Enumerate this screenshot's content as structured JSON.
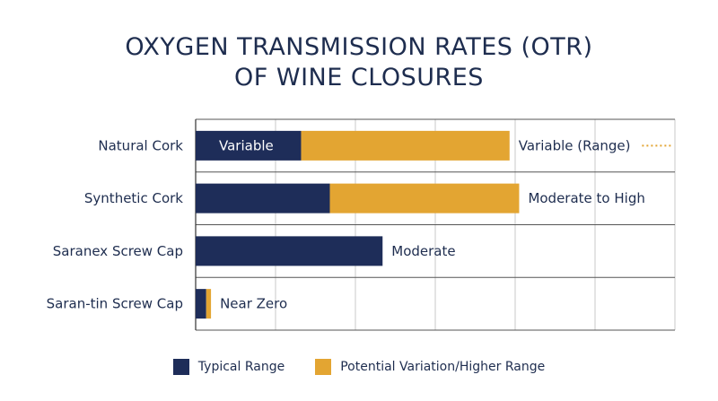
{
  "title_line1": "OXYGEN TRANSMISSION RATES (OTR)",
  "title_line2": "OF WINE CLOSURES",
  "colors": {
    "typical": "#1e2d59",
    "potential": "#e3a532",
    "grid": "#c9c9c9",
    "axis": "#333333"
  },
  "chart_data": {
    "type": "bar",
    "orientation": "horizontal",
    "stacked": true,
    "title": "OXYGEN TRANSMISSION RATES (OTR) OF WINE CLOSURES",
    "categories": [
      "Natural Cork",
      "Synthetic Cork",
      "Saranex Screw Cap",
      "Saran-tin Screw Cap"
    ],
    "series": [
      {
        "name": "Typical Range",
        "values": [
          0.22,
          0.28,
          0.39,
          0.022
        ]
      },
      {
        "name": "Potential Variation/Higher Range",
        "values": [
          0.435,
          0.395,
          0,
          0.01
        ]
      }
    ],
    "bar_labels": [
      "Variable (Range)",
      "Moderate to High",
      "Moderate",
      "Near Zero"
    ],
    "inner_labels": [
      "Variable",
      "",
      "",
      ""
    ],
    "xlim": [
      0,
      1
    ],
    "grid": true,
    "legend": "bottom-center"
  }
}
